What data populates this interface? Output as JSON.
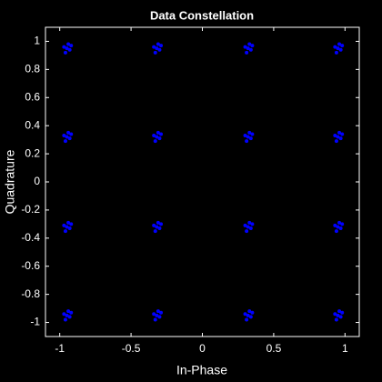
{
  "chart_data": {
    "type": "scatter",
    "title": "Data Constellation",
    "xlabel": "In-Phase",
    "ylabel": "Quadrature",
    "color": "#0000ff",
    "x": [
      -0.95,
      -0.93,
      -0.97,
      -0.94,
      -0.96,
      -0.92,
      -0.32,
      -0.3,
      -0.34,
      -0.31,
      -0.33,
      -0.29,
      0.32,
      0.34,
      0.3,
      0.33,
      0.31,
      0.35,
      0.95,
      0.97,
      0.93,
      0.96,
      0.94,
      0.98,
      -0.95,
      -0.93,
      -0.97,
      -0.94,
      -0.96,
      -0.92,
      -0.32,
      -0.3,
      -0.34,
      -0.31,
      -0.33,
      -0.29,
      0.32,
      0.34,
      0.3,
      0.33,
      0.31,
      0.35,
      0.95,
      0.97,
      0.93,
      0.96,
      0.94,
      0.98,
      -0.95,
      -0.93,
      -0.97,
      -0.94,
      -0.96,
      -0.92,
      -0.32,
      -0.3,
      -0.34,
      -0.31,
      -0.33,
      -0.29,
      0.32,
      0.34,
      0.3,
      0.33,
      0.31,
      0.35,
      0.95,
      0.97,
      0.93,
      0.96,
      0.94,
      0.98,
      -0.95,
      -0.93,
      -0.97,
      -0.94,
      -0.96,
      -0.92,
      -0.32,
      -0.3,
      -0.34,
      -0.31,
      -0.33,
      -0.29,
      0.32,
      0.34,
      0.3,
      0.33,
      0.31,
      0.35,
      0.95,
      0.97,
      0.93,
      0.96,
      0.94,
      0.98
    ],
    "y": [
      0.95,
      0.94,
      0.96,
      0.98,
      0.92,
      0.97,
      0.95,
      0.94,
      0.96,
      0.98,
      0.92,
      0.97,
      0.95,
      0.94,
      0.96,
      0.98,
      0.92,
      0.97,
      0.95,
      0.94,
      0.96,
      0.98,
      0.92,
      0.97,
      0.32,
      0.31,
      0.33,
      0.35,
      0.29,
      0.34,
      0.32,
      0.31,
      0.33,
      0.35,
      0.29,
      0.34,
      0.32,
      0.31,
      0.33,
      0.35,
      0.29,
      0.34,
      0.32,
      0.31,
      0.33,
      0.35,
      0.29,
      0.34,
      -0.32,
      -0.33,
      -0.31,
      -0.29,
      -0.35,
      -0.3,
      -0.32,
      -0.33,
      -0.31,
      -0.29,
      -0.35,
      -0.3,
      -0.32,
      -0.33,
      -0.31,
      -0.29,
      -0.35,
      -0.3,
      -0.32,
      -0.33,
      -0.31,
      -0.29,
      -0.35,
      -0.3,
      -0.95,
      -0.96,
      -0.94,
      -0.92,
      -0.98,
      -0.93,
      -0.95,
      -0.96,
      -0.94,
      -0.92,
      -0.98,
      -0.93,
      -0.95,
      -0.96,
      -0.94,
      -0.92,
      -0.98,
      -0.93,
      -0.95,
      -0.96,
      -0.94,
      -0.92,
      -0.98,
      -0.93
    ],
    "xlim": [
      -1.1,
      1.1
    ],
    "ylim": [
      -1.1,
      1.1
    ],
    "xticks": [
      -1,
      -0.5,
      0,
      0.5,
      1
    ],
    "yticks": [
      -1,
      -0.8,
      -0.6,
      -0.4,
      -0.2,
      0,
      0.2,
      0.4,
      0.6,
      0.8,
      1
    ]
  }
}
